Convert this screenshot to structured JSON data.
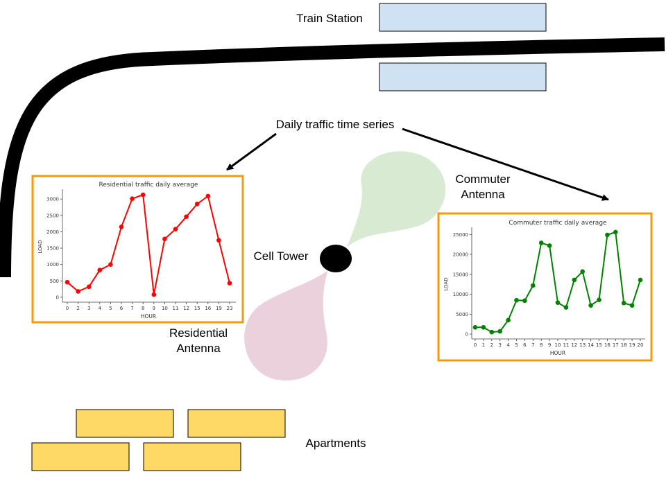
{
  "labels": {
    "train_station": "Train Station",
    "daily_traffic": "Daily traffic time series",
    "commuter_antenna_line1": "Commuter",
    "commuter_antenna_line2": "Antenna",
    "cell_tower": "Cell Tower",
    "residential_antenna_line1": "Residential",
    "residential_antenna_line2": "Antenna",
    "apartments": "Apartments"
  },
  "colors": {
    "station_box": "#cfe2f3",
    "apartment_box": "#ffd966",
    "chart_border": "#f59b0b",
    "commuter_lobe": "#d9ead3",
    "residential_lobe": "#ead1dc",
    "railway": "#000000",
    "tower": "#000000"
  },
  "chart_data": [
    {
      "type": "line",
      "title": "Residential traffic daily average",
      "xlabel": "HOUR",
      "ylabel": "LOAD",
      "color": "#ff0000",
      "x": [
        0,
        2,
        3,
        4,
        5,
        6,
        7,
        8,
        9,
        10,
        11,
        12,
        15,
        16,
        19,
        23
      ],
      "values": [
        460,
        180,
        320,
        830,
        1000,
        2150,
        3010,
        3130,
        80,
        1780,
        2080,
        2460,
        2850,
        3090,
        1740,
        430
      ],
      "yticks": [
        0,
        500,
        1000,
        1500,
        2000,
        2500,
        3000
      ],
      "ylim": [
        -150,
        3300
      ]
    },
    {
      "type": "line",
      "title": "Commuter traffic daily average",
      "xlabel": "HOUR",
      "ylabel": "LOAD",
      "color": "#008000",
      "x": [
        0,
        1,
        2,
        3,
        4,
        5,
        6,
        7,
        8,
        9,
        10,
        11,
        12,
        13,
        14,
        15,
        16,
        17,
        18,
        19,
        20
      ],
      "values": [
        1700,
        1700,
        500,
        700,
        3500,
        8500,
        8400,
        12200,
        22900,
        22200,
        7900,
        6700,
        13600,
        15700,
        7200,
        8600,
        24900,
        25600,
        7800,
        7200,
        13600
      ],
      "yticks": [
        0,
        5000,
        10000,
        15000,
        20000,
        25000
      ],
      "ylim": [
        -1200,
        26800
      ]
    }
  ]
}
